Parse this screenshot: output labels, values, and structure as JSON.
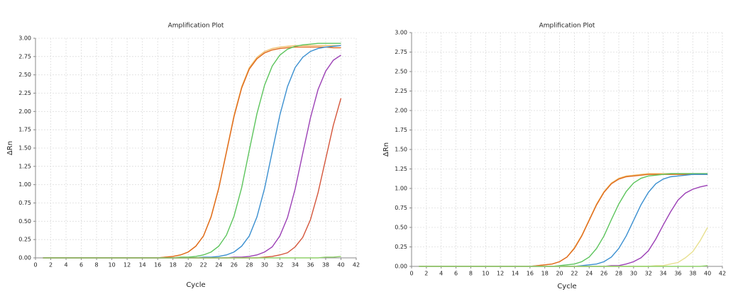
{
  "chart_data": [
    {
      "type": "line",
      "title": "Amplification Plot",
      "x_label": "Cycle",
      "y_label": "ΔRn",
      "x": [
        1,
        5,
        10,
        15,
        16,
        17,
        18,
        19,
        20,
        21,
        22,
        23,
        24,
        25,
        26,
        27,
        28,
        29,
        30,
        31,
        32,
        33,
        34,
        35,
        36,
        37,
        38,
        39,
        40
      ],
      "xlim": [
        0,
        42
      ],
      "xticks": [
        0,
        2,
        4,
        6,
        8,
        10,
        12,
        14,
        16,
        18,
        20,
        22,
        24,
        26,
        28,
        30,
        32,
        34,
        36,
        38,
        40,
        42
      ],
      "ylim": [
        0,
        3
      ],
      "yticks": [
        {
          "value": 0,
          "label": "0.00"
        },
        {
          "value": 0.25,
          "label": "0.25"
        },
        {
          "value": 0.5,
          "label": "0.50"
        },
        {
          "value": 0.75,
          "label": "0.75"
        },
        {
          "value": 1,
          "label": "1.00"
        },
        {
          "value": 1.25,
          "label": "1.25"
        },
        {
          "value": 1.5,
          "label": "1.50"
        },
        {
          "value": 1.75,
          "label": "1.75"
        },
        {
          "value": 2,
          "label": "2.00"
        },
        {
          "value": 2.25,
          "label": "2.25"
        },
        {
          "value": 2.5,
          "label": "2.50"
        },
        {
          "value": 2.75,
          "label": "2.75"
        },
        {
          "value": 3,
          "label": "3.00"
        }
      ],
      "grid": true,
      "series": [
        {
          "color": "#f0c070",
          "values": [
            0,
            0,
            0,
            0,
            0,
            0.01,
            0.02,
            0.04,
            0.08,
            0.16,
            0.3,
            0.57,
            0.96,
            1.45,
            1.95,
            2.34,
            2.6,
            2.74,
            2.82,
            2.86,
            2.88,
            2.89,
            2.9,
            2.9,
            2.9,
            2.9,
            2.9,
            2.9,
            2.9
          ]
        },
        {
          "color": "#e06a1b",
          "values": [
            0,
            0,
            0,
            0,
            0,
            0.01,
            0.02,
            0.04,
            0.08,
            0.16,
            0.3,
            0.56,
            0.95,
            1.44,
            1.93,
            2.32,
            2.58,
            2.72,
            2.8,
            2.84,
            2.86,
            2.87,
            2.88,
            2.88,
            2.88,
            2.88,
            2.88,
            2.87,
            2.87
          ]
        },
        {
          "color": "#5cc45c",
          "values": [
            0,
            0,
            0,
            0,
            0,
            0,
            0,
            0.01,
            0.01,
            0.02,
            0.04,
            0.08,
            0.16,
            0.31,
            0.57,
            0.96,
            1.47,
            1.97,
            2.36,
            2.62,
            2.77,
            2.85,
            2.89,
            2.91,
            2.92,
            2.93,
            2.93,
            2.93,
            2.93
          ]
        },
        {
          "color": "#3a8fd0",
          "values": [
            0,
            0,
            0,
            0,
            0,
            0,
            0,
            0,
            0,
            0,
            0.01,
            0.01,
            0.02,
            0.04,
            0.08,
            0.16,
            0.3,
            0.56,
            0.95,
            1.45,
            1.95,
            2.34,
            2.6,
            2.74,
            2.82,
            2.86,
            2.88,
            2.89,
            2.9
          ]
        },
        {
          "color": "#9b3fb5",
          "values": [
            0,
            0,
            0,
            0,
            0,
            0,
            0,
            0,
            0,
            0,
            0,
            0,
            0,
            0,
            0.01,
            0.01,
            0.02,
            0.04,
            0.08,
            0.15,
            0.3,
            0.55,
            0.94,
            1.43,
            1.91,
            2.3,
            2.55,
            2.7,
            2.77
          ]
        },
        {
          "color": "#d4553a",
          "values": [
            0,
            0,
            0,
            0,
            0,
            0,
            0,
            0,
            0,
            0,
            0,
            0,
            0,
            0,
            0,
            0,
            0,
            0,
            0.01,
            0.02,
            0.04,
            0.07,
            0.15,
            0.28,
            0.52,
            0.89,
            1.35,
            1.81,
            2.18
          ]
        },
        {
          "color": "#8fd06a",
          "values": [
            0,
            0,
            0,
            0,
            0,
            0,
            0,
            0,
            0,
            0,
            0,
            0,
            0,
            0,
            0,
            0,
            0,
            0,
            0,
            0,
            0,
            0,
            0,
            0,
            0,
            0,
            0.01,
            0.01,
            0.02
          ]
        }
      ]
    },
    {
      "type": "line",
      "title": "Amplification Plot",
      "x_label": "Cycle",
      "y_label": "ΔRn",
      "x": [
        1,
        5,
        10,
        15,
        16,
        17,
        18,
        19,
        20,
        21,
        22,
        23,
        24,
        25,
        26,
        27,
        28,
        29,
        30,
        31,
        32,
        33,
        34,
        35,
        36,
        37,
        38,
        39,
        40
      ],
      "xlim": [
        0,
        42
      ],
      "xticks": [
        0,
        2,
        4,
        6,
        8,
        10,
        12,
        14,
        16,
        18,
        20,
        22,
        24,
        26,
        28,
        30,
        32,
        34,
        36,
        38,
        40,
        42
      ],
      "ylim": [
        0,
        3
      ],
      "yticks": [
        {
          "value": 0,
          "label": "0.00"
        },
        {
          "value": 0.25,
          "label": "0.25"
        },
        {
          "value": 0.5,
          "label": "0.50"
        },
        {
          "value": 0.75,
          "label": "0.75"
        },
        {
          "value": 1,
          "label": "1.00"
        },
        {
          "value": 1.25,
          "label": "1.25"
        },
        {
          "value": 1.5,
          "label": "1.50"
        },
        {
          "value": 1.75,
          "label": "1.75"
        },
        {
          "value": 2,
          "label": "2.00"
        },
        {
          "value": 2.25,
          "label": "2.25"
        },
        {
          "value": 2.5,
          "label": "2.50"
        },
        {
          "value": 2.75,
          "label": "2.75"
        },
        {
          "value": 3,
          "label": "3.00"
        }
      ],
      "grid": true,
      "series": [
        {
          "color": "#f0c070",
          "values": [
            0,
            0,
            0,
            0,
            0,
            0.01,
            0.02,
            0.03,
            0.06,
            0.12,
            0.24,
            0.4,
            0.6,
            0.8,
            0.96,
            1.07,
            1.13,
            1.16,
            1.17,
            1.18,
            1.19,
            1.19,
            1.19,
            1.19,
            1.19,
            1.19,
            1.19,
            1.19,
            1.19
          ]
        },
        {
          "color": "#e06a1b",
          "values": [
            0,
            0,
            0,
            0,
            0,
            0.01,
            0.02,
            0.03,
            0.06,
            0.12,
            0.23,
            0.39,
            0.59,
            0.79,
            0.95,
            1.06,
            1.12,
            1.15,
            1.16,
            1.17,
            1.18,
            1.18,
            1.18,
            1.18,
            1.18,
            1.18,
            1.18,
            1.18,
            1.18
          ]
        },
        {
          "color": "#5cc45c",
          "values": [
            0,
            0,
            0,
            0,
            0,
            0,
            0,
            0,
            0.01,
            0.02,
            0.03,
            0.06,
            0.12,
            0.23,
            0.39,
            0.6,
            0.8,
            0.96,
            1.07,
            1.13,
            1.16,
            1.17,
            1.18,
            1.19,
            1.19,
            1.19,
            1.19,
            1.19,
            1.19
          ]
        },
        {
          "color": "#3a8fd0",
          "values": [
            0,
            0,
            0,
            0,
            0,
            0,
            0,
            0,
            0,
            0,
            0,
            0.01,
            0.02,
            0.03,
            0.06,
            0.12,
            0.23,
            0.39,
            0.59,
            0.79,
            0.95,
            1.06,
            1.12,
            1.15,
            1.16,
            1.17,
            1.18,
            1.18,
            1.18
          ]
        },
        {
          "color": "#9b3fb5",
          "values": [
            0,
            0,
            0,
            0,
            0,
            0,
            0,
            0,
            0,
            0,
            0,
            0,
            0,
            0,
            0,
            0.01,
            0.01,
            0.03,
            0.06,
            0.11,
            0.2,
            0.35,
            0.53,
            0.7,
            0.85,
            0.94,
            0.99,
            1.02,
            1.04
          ]
        },
        {
          "color": "#e8e090",
          "values": [
            0,
            0,
            0,
            0,
            0,
            0,
            0,
            0,
            0,
            0,
            0,
            0,
            0,
            0,
            0,
            0,
            0,
            0,
            0,
            0,
            0,
            0.01,
            0.01,
            0.03,
            0.05,
            0.11,
            0.19,
            0.33,
            0.5
          ]
        },
        {
          "color": "#8fd06a",
          "values": [
            0,
            0,
            0,
            0,
            0,
            0,
            0,
            0,
            0,
            0,
            0,
            0,
            0,
            0,
            0,
            0,
            0,
            0,
            0,
            0,
            0,
            0,
            0,
            0,
            0,
            0,
            0,
            0,
            0.01
          ]
        }
      ]
    }
  ]
}
